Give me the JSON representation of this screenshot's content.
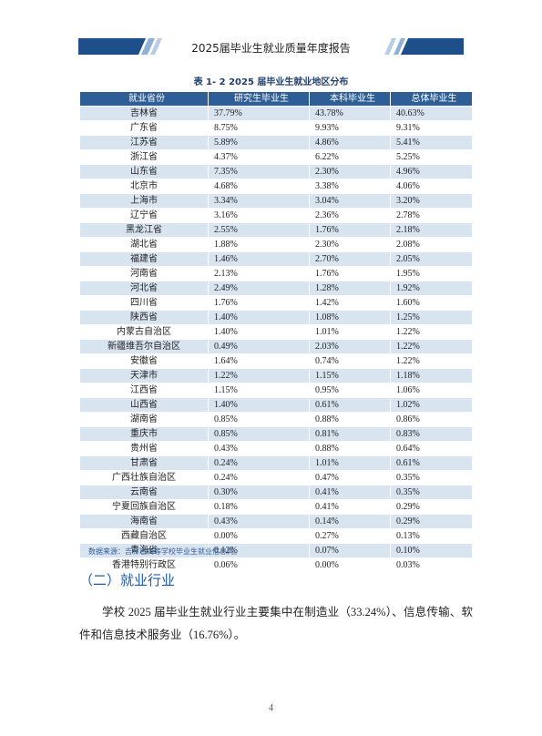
{
  "header": {
    "title": "2025届毕业生就业质量年度报告"
  },
  "table": {
    "caption": "表 1- 2  2025 届毕业生就业地区分布",
    "columns": [
      "就业省份",
      "研究生毕业生",
      "本科毕业生",
      "总体毕业生"
    ],
    "rows": [
      [
        "吉林省",
        "37.79%",
        "43.78%",
        "40.63%"
      ],
      [
        "广东省",
        "8.75%",
        "9.93%",
        "9.31%"
      ],
      [
        "江苏省",
        "5.89%",
        "4.86%",
        "5.41%"
      ],
      [
        "浙江省",
        "4.37%",
        "6.22%",
        "5.25%"
      ],
      [
        "山东省",
        "7.35%",
        "2.30%",
        "4.96%"
      ],
      [
        "北京市",
        "4.68%",
        "3.38%",
        "4.06%"
      ],
      [
        "上海市",
        "3.34%",
        "3.04%",
        "3.20%"
      ],
      [
        "辽宁省",
        "3.16%",
        "2.36%",
        "2.78%"
      ],
      [
        "黑龙江省",
        "2.55%",
        "1.76%",
        "2.18%"
      ],
      [
        "湖北省",
        "1.88%",
        "2.30%",
        "2.08%"
      ],
      [
        "福建省",
        "1.46%",
        "2.70%",
        "2.05%"
      ],
      [
        "河南省",
        "2.13%",
        "1.76%",
        "1.95%"
      ],
      [
        "河北省",
        "2.49%",
        "1.28%",
        "1.92%"
      ],
      [
        "四川省",
        "1.76%",
        "1.42%",
        "1.60%"
      ],
      [
        "陕西省",
        "1.40%",
        "1.08%",
        "1.25%"
      ],
      [
        "内蒙古自治区",
        "1.40%",
        "1.01%",
        "1.22%"
      ],
      [
        "新疆维吾尔自治区",
        "0.49%",
        "2.03%",
        "1.22%"
      ],
      [
        "安徽省",
        "1.64%",
        "0.74%",
        "1.22%"
      ],
      [
        "天津市",
        "1.22%",
        "1.15%",
        "1.18%"
      ],
      [
        "江西省",
        "1.15%",
        "0.95%",
        "1.06%"
      ],
      [
        "山西省",
        "1.40%",
        "0.61%",
        "1.02%"
      ],
      [
        "湖南省",
        "0.85%",
        "0.88%",
        "0.86%"
      ],
      [
        "重庆市",
        "0.85%",
        "0.81%",
        "0.83%"
      ],
      [
        "贵州省",
        "0.43%",
        "0.88%",
        "0.64%"
      ],
      [
        "甘肃省",
        "0.24%",
        "1.01%",
        "0.61%"
      ],
      [
        "广西壮族自治区",
        "0.24%",
        "0.47%",
        "0.35%"
      ],
      [
        "云南省",
        "0.30%",
        "0.41%",
        "0.35%"
      ],
      [
        "宁夏回族自治区",
        "0.18%",
        "0.41%",
        "0.29%"
      ],
      [
        "海南省",
        "0.43%",
        "0.14%",
        "0.29%"
      ],
      [
        "西藏自治区",
        "0.00%",
        "0.27%",
        "0.13%"
      ],
      [
        "青海省",
        "0.12%",
        "0.07%",
        "0.10%"
      ],
      [
        "香港特别行政区",
        "0.06%",
        "0.00%",
        "0.03%"
      ]
    ],
    "source": "数据来源：吉林省高等学校毕业生就业信息网。"
  },
  "section": {
    "heading": "（二）就业行业",
    "paragraph": "学校 2025 届毕业生就业行业主要集中在制造业（33.24%）、信息传输、软件和信息技术服务业（16.76%）。"
  },
  "footer": {
    "page": "4"
  }
}
